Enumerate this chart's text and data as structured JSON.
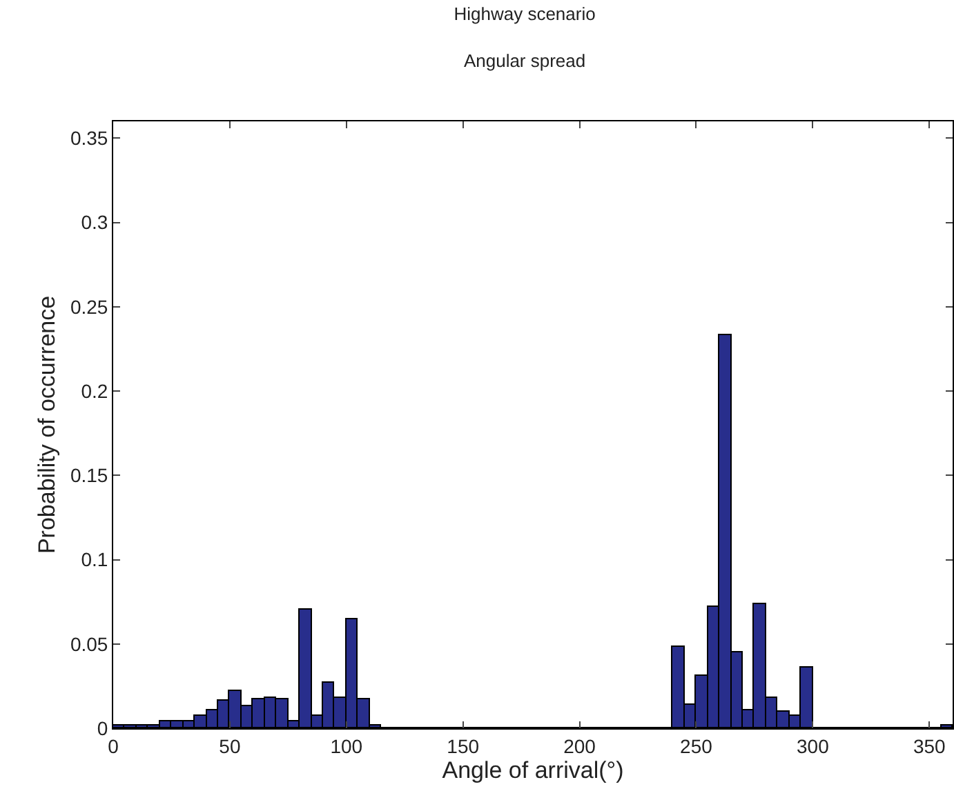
{
  "chart_data": {
    "type": "histogram",
    "title": "Highway scenario",
    "subtitle": "Angular spread",
    "xlabel": "Angle of arrival(°)",
    "ylabel": "Probability of occurrence",
    "bins": [
      0,
      5,
      10,
      15,
      20,
      25,
      30,
      35,
      40,
      45,
      50,
      55,
      60,
      65,
      70,
      75,
      80,
      85,
      90,
      95,
      100,
      105,
      110,
      115,
      120,
      125,
      130,
      135,
      140,
      145,
      150,
      155,
      160,
      165,
      170,
      175,
      180,
      185,
      190,
      195,
      200,
      205,
      210,
      215,
      220,
      225,
      230,
      235,
      240,
      245,
      250,
      255,
      260,
      265,
      270,
      275,
      280,
      285,
      290,
      295,
      300,
      305,
      310,
      315,
      320,
      325,
      330,
      335,
      340,
      345,
      350,
      355,
      360
    ],
    "values": [
      0.002,
      0.002,
      0.002,
      0.002,
      0.004,
      0.004,
      0.004,
      0.007,
      0.011,
      0.016,
      0.022,
      0.013,
      0.017,
      0.018,
      0.017,
      0.004,
      0.07,
      0.007,
      0.027,
      0.018,
      0.065,
      0.017,
      0.002,
      0,
      0,
      0,
      0,
      0,
      0,
      0,
      0,
      0,
      0,
      0,
      0,
      0,
      0,
      0,
      0,
      0,
      0,
      0,
      0,
      0,
      0,
      0,
      0,
      0,
      0.048,
      0.014,
      0.031,
      0.072,
      0.233,
      0.045,
      0.011,
      0.074,
      0.018,
      0.01,
      0.007,
      0.036,
      0,
      0,
      0,
      0,
      0,
      0,
      0,
      0,
      0,
      0,
      0,
      0.002
    ],
    "color": "#282e8c",
    "xlim": [
      0,
      360
    ],
    "xticks": [
      0,
      50,
      100,
      150,
      200,
      250,
      300,
      350
    ],
    "ylim": [
      0,
      0.36
    ],
    "yticks": [
      0,
      0.05,
      0.1,
      0.15,
      0.2,
      0.25,
      0.3,
      0.35
    ]
  }
}
